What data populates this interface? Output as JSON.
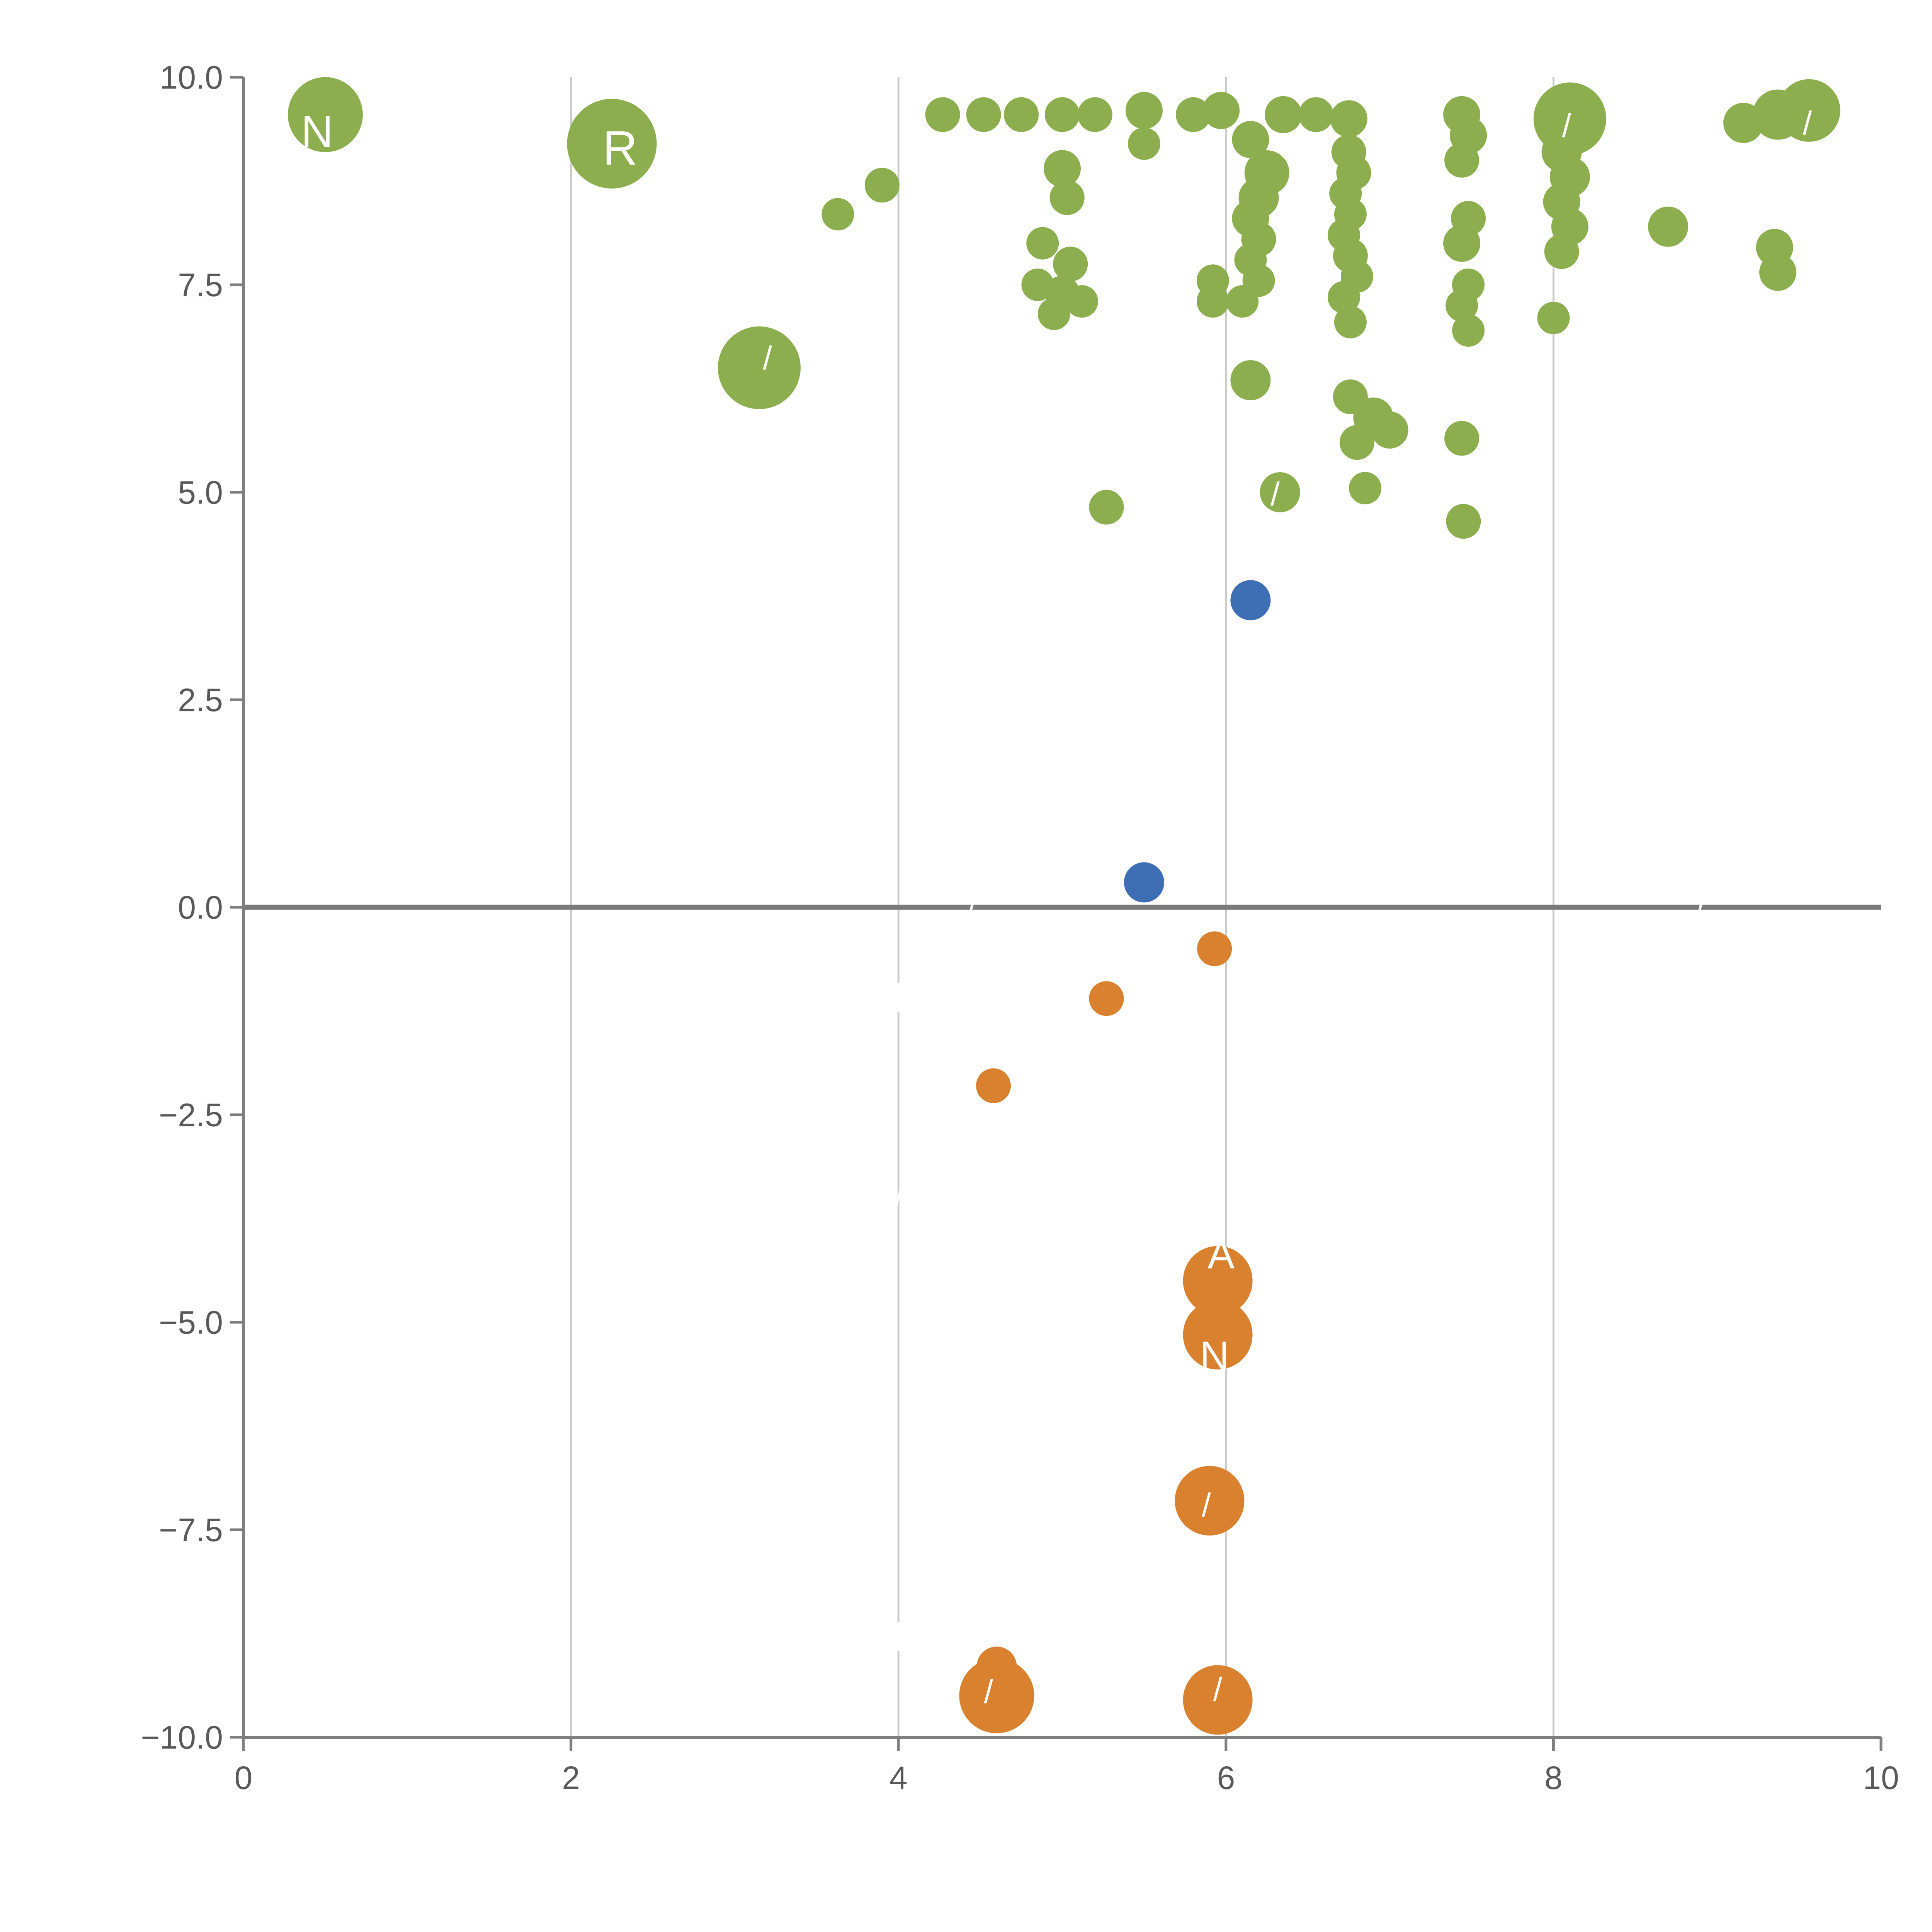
{
  "page": {
    "background": "#ffffff"
  },
  "chart_data": {
    "type": "scatter",
    "title": "",
    "subtitle": "",
    "xlabel": "",
    "ylabel": "",
    "xlim": [
      0,
      10
    ],
    "ylim": [
      -10,
      10
    ],
    "xticks": {
      "values": [
        0,
        2,
        4,
        6,
        8,
        10
      ],
      "labels": [
        "0",
        "2",
        "4",
        "6",
        "8",
        "10"
      ]
    },
    "yticks": {
      "values": [
        10,
        7.5,
        5,
        2.5,
        0,
        -2.5,
        -5,
        -7.5,
        -10
      ],
      "labels": [
        "10.0",
        "7.5",
        "5.0",
        "2.5",
        "0.0",
        "−2.5",
        "−5.0",
        "−7.5",
        "−10.0"
      ]
    },
    "grid_x": [
      2,
      4,
      6,
      8
    ],
    "zero_line": true,
    "legend": "none",
    "colors": {
      "axis": "#7f7f7f",
      "grid": "#cbcbcb",
      "tick_label": "#595959",
      "zero_line": "#7a7a7a",
      "green": "#8cae4e",
      "blue": "#3e6fb5",
      "orange": "#d9812e"
    },
    "point_format": "[x, y, radius_px]",
    "series": [
      {
        "name": "green",
        "color": "#8cae4e",
        "points": [
          [
            0.5,
            9.55,
            97
          ],
          [
            2.25,
            9.2,
            116
          ],
          [
            3.15,
            6.5,
            107
          ],
          [
            3.63,
            8.35,
            42
          ],
          [
            3.9,
            8.7,
            45
          ],
          [
            4.27,
            9.55,
            45
          ],
          [
            4.52,
            9.55,
            45
          ],
          [
            4.75,
            9.55,
            45
          ],
          [
            5.0,
            9.55,
            45
          ],
          [
            5.2,
            9.55,
            45
          ],
          [
            5.5,
            9.6,
            48
          ],
          [
            5.5,
            9.2,
            42
          ],
          [
            5.8,
            9.55,
            45
          ],
          [
            5.97,
            9.6,
            48
          ],
          [
            5.0,
            8.9,
            48
          ],
          [
            5.03,
            8.55,
            45
          ],
          [
            4.88,
            8.0,
            42
          ],
          [
            5.05,
            7.75,
            45
          ],
          [
            4.85,
            7.5,
            42
          ],
          [
            5.0,
            7.4,
            45
          ],
          [
            5.12,
            7.3,
            42
          ],
          [
            4.95,
            7.15,
            42
          ],
          [
            5.27,
            4.82,
            45
          ],
          [
            5.92,
            7.55,
            42
          ],
          [
            5.92,
            7.3,
            42
          ],
          [
            6.35,
            9.55,
            48
          ],
          [
            6.55,
            9.55,
            45
          ],
          [
            6.75,
            9.5,
            48
          ],
          [
            6.15,
            9.25,
            48
          ],
          [
            6.25,
            8.85,
            58
          ],
          [
            6.2,
            8.55,
            52
          ],
          [
            6.15,
            8.3,
            48
          ],
          [
            6.2,
            8.05,
            45
          ],
          [
            6.15,
            7.8,
            42
          ],
          [
            6.2,
            7.55,
            42
          ],
          [
            6.1,
            7.3,
            42
          ],
          [
            6.15,
            6.35,
            52
          ],
          [
            6.33,
            5.0,
            52
          ],
          [
            6.75,
            9.1,
            45
          ],
          [
            6.78,
            8.85,
            45
          ],
          [
            6.73,
            8.6,
            42
          ],
          [
            6.76,
            8.35,
            42
          ],
          [
            6.72,
            8.1,
            42
          ],
          [
            6.76,
            7.85,
            45
          ],
          [
            6.8,
            7.6,
            42
          ],
          [
            6.72,
            7.35,
            42
          ],
          [
            6.76,
            7.05,
            42
          ],
          [
            6.76,
            6.15,
            45
          ],
          [
            6.9,
            5.9,
            52
          ],
          [
            7.0,
            5.75,
            48
          ],
          [
            6.8,
            5.6,
            45
          ],
          [
            6.85,
            5.05,
            42
          ],
          [
            7.44,
            9.55,
            48
          ],
          [
            7.48,
            9.3,
            48
          ],
          [
            7.44,
            9.0,
            45
          ],
          [
            7.48,
            8.3,
            45
          ],
          [
            7.44,
            8.0,
            48
          ],
          [
            7.48,
            7.5,
            42
          ],
          [
            7.44,
            7.25,
            42
          ],
          [
            7.48,
            6.95,
            42
          ],
          [
            7.44,
            5.65,
            45
          ],
          [
            7.45,
            4.65,
            45
          ],
          [
            8.1,
            9.5,
            94
          ],
          [
            8.05,
            9.1,
            52
          ],
          [
            8.1,
            8.8,
            52
          ],
          [
            8.05,
            8.5,
            48
          ],
          [
            8.1,
            8.2,
            48
          ],
          [
            8.05,
            7.9,
            45
          ],
          [
            8.0,
            7.1,
            42
          ],
          [
            8.7,
            8.2,
            52
          ],
          [
            9.16,
            9.45,
            52
          ],
          [
            9.37,
            9.55,
            65
          ],
          [
            9.56,
            9.6,
            81
          ],
          [
            9.35,
            7.95,
            48
          ],
          [
            9.37,
            7.65,
            48
          ]
        ]
      },
      {
        "name": "blue",
        "color": "#3e6fb5",
        "points": [
          [
            6.15,
            3.7,
            52
          ],
          [
            5.5,
            0.3,
            52
          ]
        ]
      },
      {
        "name": "orange",
        "color": "#d9812e",
        "points": [
          [
            5.93,
            -0.5,
            45
          ],
          [
            5.27,
            -1.1,
            45
          ],
          [
            4.58,
            -2.15,
            45
          ],
          [
            5.95,
            -4.5,
            90
          ],
          [
            5.95,
            -5.15,
            90
          ],
          [
            5.9,
            -7.15,
            90
          ],
          [
            4.6,
            -9.15,
            52
          ],
          [
            4.6,
            -9.5,
            97
          ],
          [
            5.95,
            -9.55,
            90
          ]
        ]
      }
    ],
    "annotations": [
      {
        "x": 0.45,
        "y": 9.35,
        "text": "N",
        "size": 115
      },
      {
        "x": 2.3,
        "y": 9.15,
        "text": "R",
        "size": 125
      },
      {
        "x": 3.2,
        "y": 6.62,
        "text": "/",
        "size": 85
      },
      {
        "x": 4.45,
        "y": 0.02,
        "text": "/",
        "size": 85
      },
      {
        "x": 8.9,
        "y": 0.02,
        "text": "/",
        "size": 85
      },
      {
        "x": 8.08,
        "y": 9.42,
        "text": "/",
        "size": 85
      },
      {
        "x": 9.55,
        "y": 9.45,
        "text": "/",
        "size": 85
      },
      {
        "x": 6.3,
        "y": 4.98,
        "text": "/",
        "size": 85
      },
      {
        "x": 4.0,
        "y": -1.05,
        "text": "|",
        "size": 80
      },
      {
        "x": 4.0,
        "y": -3.5,
        "text": "/",
        "size": 80
      },
      {
        "x": 4.0,
        "y": -8.75,
        "text": "|",
        "size": 80
      },
      {
        "x": 5.97,
        "y": -4.18,
        "text": "A",
        "size": 105
      },
      {
        "x": 5.93,
        "y": -5.4,
        "text": "N",
        "size": 105
      },
      {
        "x": 5.88,
        "y": -7.2,
        "text": "/",
        "size": 85
      },
      {
        "x": 4.55,
        "y": -9.45,
        "text": "/",
        "size": 85
      },
      {
        "x": 5.95,
        "y": -9.42,
        "text": "/",
        "size": 85
      }
    ]
  }
}
